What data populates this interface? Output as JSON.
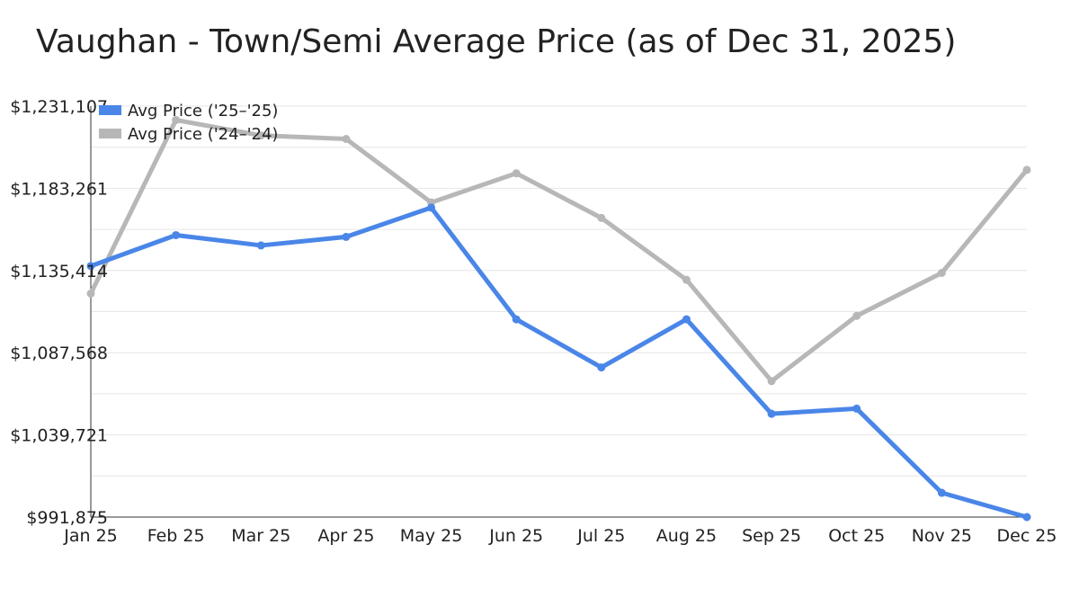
{
  "chart_data": {
    "type": "line",
    "title": "Vaughan - Town/Semi Average Price (as of Dec 31, 2025)",
    "xlabel": "",
    "ylabel": "",
    "categories": [
      "Jan 25",
      "Feb 25",
      "Mar 25",
      "Apr 25",
      "May 25",
      "Jun 25",
      "Jul 25",
      "Aug 25",
      "Sep 25",
      "Oct 25",
      "Nov 25",
      "Dec 25"
    ],
    "y_ticks": [
      "$991,875",
      "$1,039,721",
      "$1,087,568",
      "$1,135,414",
      "$1,183,261",
      "$1,231,107"
    ],
    "ylim": [
      991875,
      1231107
    ],
    "grid": true,
    "legend_position": "top-left",
    "series": [
      {
        "name": "Avg Price ('25–'25)",
        "color": "#4a86e8",
        "values": [
          1138000,
          1156000,
          1150000,
          1155000,
          1172000,
          1107000,
          1079000,
          1107000,
          1052000,
          1055000,
          1006000,
          991875
        ]
      },
      {
        "name": "Avg Price ('24–'24)",
        "color": "#b7b7b7",
        "values": [
          1122000,
          1223000,
          1214000,
          1212000,
          1175000,
          1192000,
          1166000,
          1130000,
          1071000,
          1109000,
          1134000,
          1194000
        ]
      }
    ]
  }
}
